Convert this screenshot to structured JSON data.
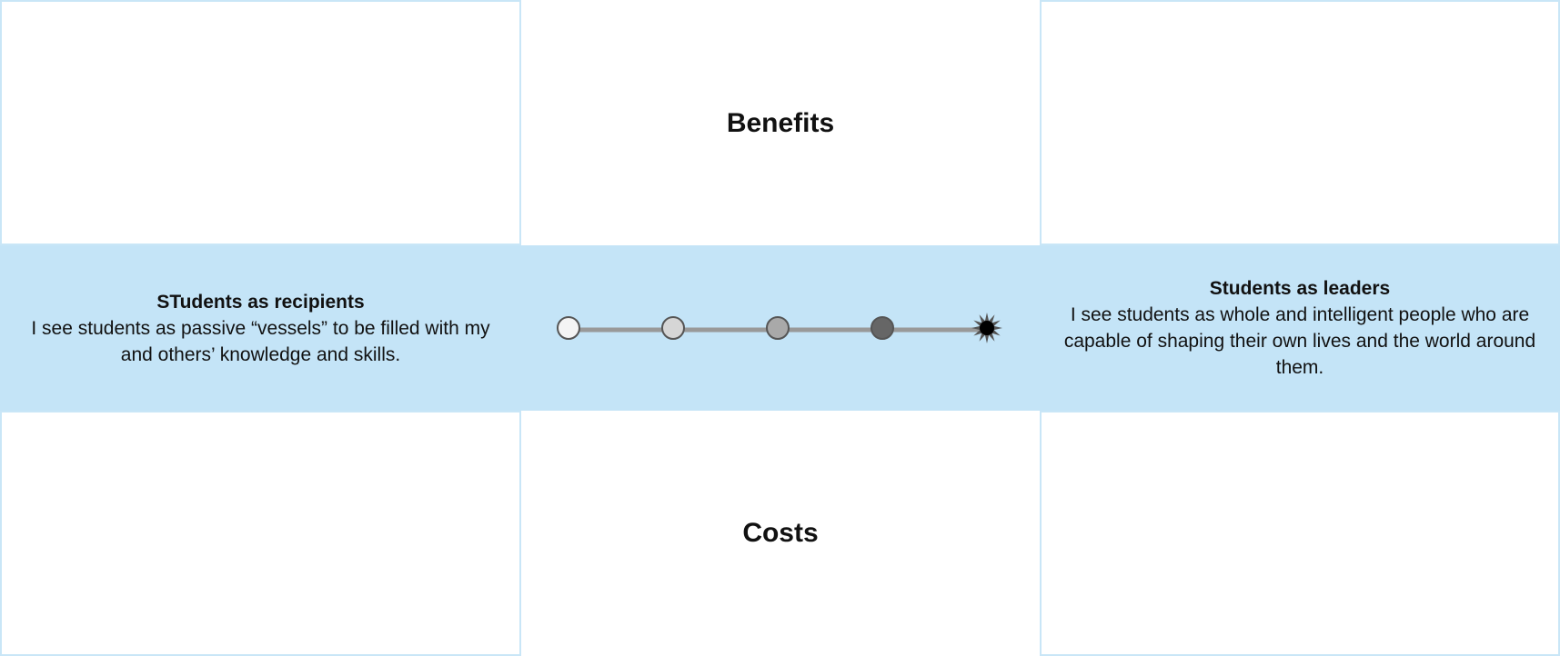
{
  "benefits_label": "Benefits",
  "costs_label": "Costs",
  "left_pole": {
    "title": "STudents as recipients",
    "description": "I see students as passive “vessels”  to be filled with my and others’ knowledge and skills."
  },
  "right_pole": {
    "title": "Students as leaders",
    "description": "I see  students as whole and intelligent people who are  capable of shaping their own lives and the world around them."
  },
  "scale": {
    "point_count": 5,
    "selected_point": 5,
    "point_colors": [
      "#f4f4f4",
      "#d6d6d6",
      "#a9a9a9",
      "#666666",
      "#000000"
    ],
    "track_color": "#999999",
    "band_color": "#c4e4f7",
    "border_color": "#c9e6f7"
  }
}
